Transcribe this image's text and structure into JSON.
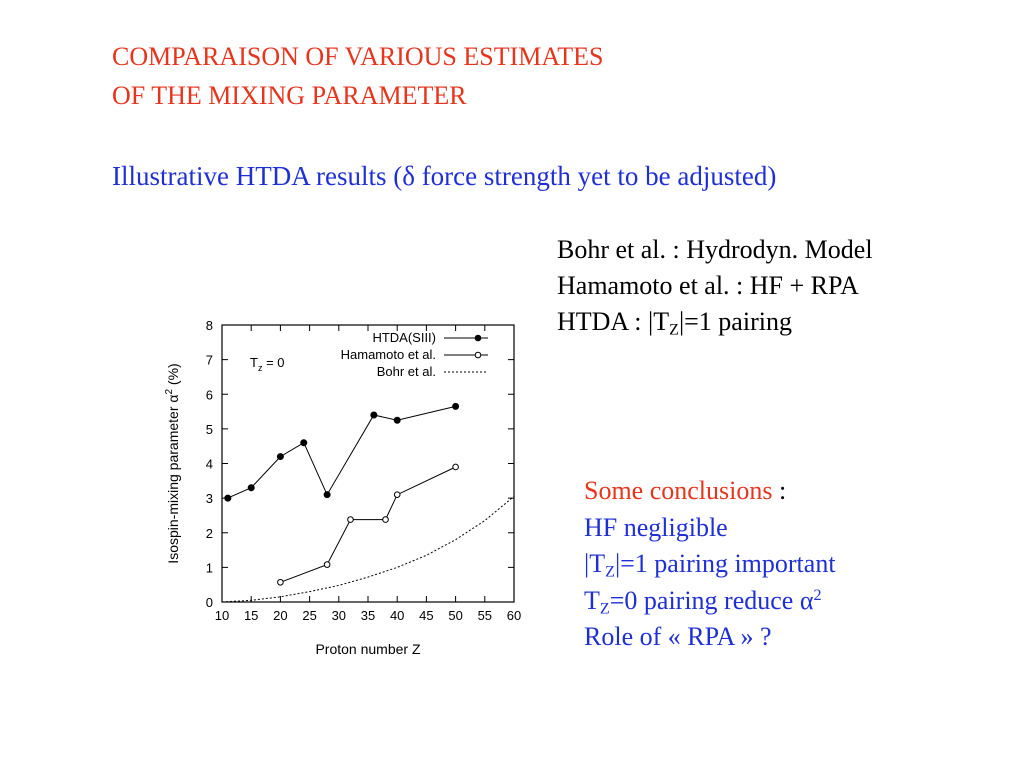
{
  "slide": {
    "title_line1": "COMPARAISON OF VARIOUS ESTIMATES",
    "title_line2": "OF THE MIXING PARAMETER",
    "subtitle_before": "Illustrative HTDA results (",
    "subtitle_delta": "δ",
    "subtitle_after": " force strength yet to be adjusted)",
    "refs": {
      "line1": "Bohr et al. : Hydrodyn. Model",
      "line2": "Hamamoto et al. : HF + RPA",
      "line3_prefix": "HTDA : |T",
      "line3_sub": "Z",
      "line3_suffix": "|=1 pairing"
    },
    "conclusions": {
      "heading": "Some conclusions",
      "heading_colon": " :",
      "item1": "HF negligible",
      "item2_prefix": "|T",
      "item2_sub": "Z",
      "item2_suffix": "|=1 pairing important",
      "item3_prefix": "T",
      "item3_sub": "Z",
      "item3_mid": "=0 pairing reduce ",
      "item3_alpha": "α",
      "item3_sup": "2",
      "item4": "Role of « RPA » ?"
    }
  },
  "chart_data": {
    "type": "line",
    "xlabel": "Proton number Z",
    "ylabel": "Isospin-mixing parameter α",
    "ylabel_sup": "2",
    "ylabel_unit": " (%)",
    "annotation_prefix": "T",
    "annotation_sub": "z",
    "annotation_suffix": " = 0",
    "xlim": [
      10,
      60
    ],
    "ylim": [
      0,
      8
    ],
    "xticks": [
      10,
      15,
      20,
      25,
      30,
      35,
      40,
      45,
      50,
      55,
      60
    ],
    "yticks": [
      0,
      1,
      2,
      3,
      4,
      5,
      6,
      7,
      8
    ],
    "grid": false,
    "legend_position": "top-right",
    "series": [
      {
        "name": "HTDA(SIII)",
        "marker": "filled-circle",
        "line": "solid",
        "x": [
          11,
          15,
          20,
          24,
          28,
          36,
          40,
          50
        ],
        "y": [
          3.0,
          3.3,
          4.2,
          4.6,
          3.1,
          5.4,
          5.25,
          5.65
        ]
      },
      {
        "name": "Hamamoto et al.",
        "marker": "open-circle",
        "line": "solid",
        "x": [
          20,
          28,
          32,
          38,
          40,
          50
        ],
        "y": [
          0.57,
          1.08,
          2.38,
          2.38,
          3.1,
          3.9
        ]
      },
      {
        "name": "Bohr et al.",
        "marker": "none",
        "line": "dotted",
        "x": [
          10,
          15,
          20,
          25,
          30,
          35,
          40,
          45,
          50,
          55,
          60
        ],
        "y": [
          0.0,
          0.05,
          0.15,
          0.3,
          0.48,
          0.72,
          1.0,
          1.35,
          1.8,
          2.35,
          3.05
        ]
      }
    ]
  }
}
